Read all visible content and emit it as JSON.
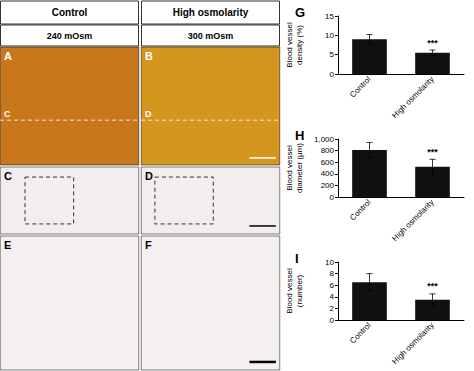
{
  "chart_data": [
    {
      "type": "bar",
      "title": "G",
      "ylabel": "Blood vessel\ndensity (%)",
      "categories": [
        "Control",
        "High osmolarity"
      ],
      "values": [
        9.0,
        5.5
      ],
      "errors": [
        1.2,
        0.7
      ],
      "color": "#111111",
      "ylim": [
        0,
        15
      ],
      "yticks": [
        0,
        5,
        10,
        15
      ],
      "grid": false,
      "annotations": [
        {
          "text": "***",
          "category": "High osmolarity"
        }
      ]
    },
    {
      "type": "bar",
      "title": "H",
      "ylabel": "Blood vessel\ndiameter (μm)",
      "categories": [
        "Control",
        "High osmolarity"
      ],
      "values": [
        810,
        520
      ],
      "errors": [
        130,
        130
      ],
      "color": "#111111",
      "ylim": [
        0,
        1000
      ],
      "yticks": [
        0,
        200,
        400,
        600,
        800,
        1000
      ],
      "grid": false,
      "annotations": [
        {
          "text": "***",
          "category": "High osmolarity"
        }
      ]
    },
    {
      "type": "bar",
      "title": "I",
      "ylabel": "Blood vessel\n(number)",
      "categories": [
        "Control",
        "High osmolarity"
      ],
      "values": [
        6.5,
        3.5
      ],
      "errors": [
        1.5,
        1.0
      ],
      "color": "#111111",
      "ylim": [
        0,
        10
      ],
      "yticks": [
        0,
        2,
        4,
        6,
        8,
        10
      ],
      "grid": false,
      "annotations": [
        {
          "text": "***",
          "category": "High osmolarity"
        }
      ]
    }
  ],
  "columns": [
    {
      "title": "Control",
      "subtitle": "240 mOsm"
    },
    {
      "title": "High osmolarity",
      "subtitle": "300 mOsm"
    }
  ],
  "image_panels": [
    {
      "label": "A",
      "color": "#c8781a",
      "annotations": [
        "C"
      ]
    },
    {
      "label": "B",
      "color": "#d4961e",
      "annotations": [
        "D"
      ]
    },
    {
      "label": "C",
      "color": "#f2eeee"
    },
    {
      "label": "D",
      "color": "#f2eeee"
    },
    {
      "label": "E",
      "color": "#f5f0f0"
    },
    {
      "label": "F",
      "color": "#f5f0f0"
    }
  ]
}
